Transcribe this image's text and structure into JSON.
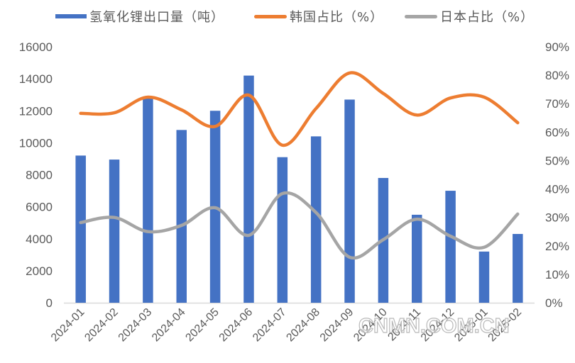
{
  "legend": {
    "bar_label": "氢氧化锂出口量（吨）",
    "korea_label": "韩国占比（%）",
    "japan_label": "日本占比（%）"
  },
  "colors": {
    "bar": "#4472C4",
    "korea": "#ED7D31",
    "japan": "#A5A5A5",
    "axis": "#D9D9D9",
    "tick_text": "#595959"
  },
  "watermark": "CNMN.COM.CN",
  "chart_data": {
    "type": "bar",
    "title": "",
    "xlabel": "",
    "ylabel": "",
    "ylabel_right": "",
    "categories": [
      "2024-01",
      "2024-02",
      "2024-03",
      "2024-04",
      "2024-05",
      "2024-06",
      "2024-07",
      "2024-08",
      "2024-09",
      "2024-10",
      "2024-11",
      "2024-12",
      "2025-01",
      "2025-02"
    ],
    "series": [
      {
        "name": "氢氧化锂出口量（吨）",
        "type": "bar",
        "axis": "left",
        "values": [
          9200,
          8950,
          12850,
          10800,
          12000,
          14200,
          9100,
          10400,
          12700,
          7800,
          5500,
          7000,
          3200,
          4300
        ]
      },
      {
        "name": "韩国占比（%）",
        "type": "line",
        "smooth": true,
        "axis": "right",
        "values": [
          66.6,
          66.8,
          72.3,
          67.8,
          62.0,
          73.0,
          55.4,
          68.3,
          80.8,
          73.6,
          66.0,
          72.0,
          72.3,
          63.3
        ]
      },
      {
        "name": "日本占比（%）",
        "type": "line",
        "smooth": true,
        "axis": "right",
        "values": [
          28.2,
          30.0,
          25.0,
          27.2,
          33.4,
          23.7,
          38.4,
          31.7,
          16.0,
          22.2,
          29.4,
          23.4,
          19.5,
          31.2
        ]
      }
    ],
    "ylim": [
      0,
      16000
    ],
    "yticks": [
      "0",
      "2000",
      "4000",
      "6000",
      "8000",
      "10000",
      "12000",
      "14000",
      "16000"
    ],
    "ylim_right": [
      0,
      90
    ],
    "yticks_right": [
      "0%",
      "10%",
      "20%",
      "30%",
      "40%",
      "50%",
      "60%",
      "70%",
      "80%",
      "90%"
    ],
    "grid": false,
    "legend_position": "top"
  }
}
